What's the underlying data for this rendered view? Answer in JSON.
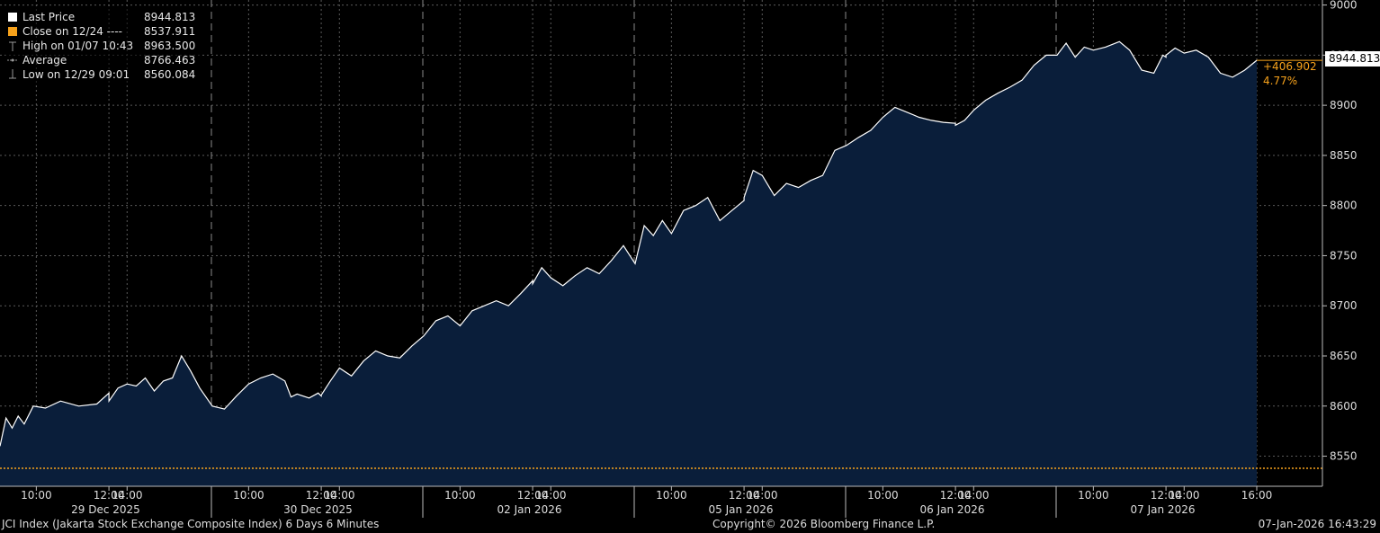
{
  "legend": {
    "items": [
      {
        "label": "Last Price",
        "value": "8944.813",
        "swatch": "#ffffff",
        "kind": "box"
      },
      {
        "label": "Close on 12/24 ----",
        "value": "8537.911",
        "swatch": "#f7a21b",
        "kind": "box"
      },
      {
        "label": "High on 01/07 10:43",
        "value": "8963.500",
        "swatch": "#888888",
        "kind": "high"
      },
      {
        "label": "Average",
        "value": "8766.463",
        "swatch": "#888888",
        "kind": "avg"
      },
      {
        "label": "Low on 12/29 09:01",
        "value": "8560.084",
        "swatch": "#888888",
        "kind": "low"
      }
    ]
  },
  "last_price_label": "8944.813",
  "change": {
    "abs": "+406.902",
    "pct": "4.77%"
  },
  "footer": {
    "left": "JCI Index (Jakarta Stock Exchange Composite Index) 6 Days 6 Minutes",
    "center": "Copyright© 2026 Bloomberg Finance L.P.",
    "right": "07-Jan-2026 16:43:29"
  },
  "colors": {
    "line": "#ffffff",
    "fill": "#0a1e3a",
    "close_line": "#f7a21b",
    "grid": "#5a5a5a",
    "axis_text": "#dddddd"
  },
  "chart_data": {
    "type": "area",
    "ylim": [
      8520,
      9005
    ],
    "yticks": [
      8550,
      8600,
      8650,
      8700,
      8750,
      8800,
      8850,
      8900,
      8950,
      9000
    ],
    "reference_close": 8537.911,
    "days": [
      {
        "label": "29 Dec 2025",
        "times": [
          "10:00",
          "12:00",
          "14:00"
        ]
      },
      {
        "label": "30 Dec 2025",
        "times": [
          "10:00",
          "12:00",
          "14:00"
        ]
      },
      {
        "label": "02 Jan 2026",
        "times": [
          "10:00",
          "12:00",
          "14:00"
        ]
      },
      {
        "label": "05 Jan 2026",
        "times": [
          "10:00",
          "12:00",
          "14:00"
        ]
      },
      {
        "label": "06 Jan 2026",
        "times": [
          "10:00",
          "12:00",
          "14:00"
        ]
      },
      {
        "label": "07 Jan 2026",
        "times": [
          "10:00",
          "12:00",
          "14:00",
          "16:00"
        ]
      }
    ],
    "series": [
      {
        "name": "Last Price",
        "points": [
          [
            "29 Dec 2025 09:00",
            8560
          ],
          [
            "29 Dec 2025 09:10",
            8588
          ],
          [
            "29 Dec 2025 09:20",
            8578
          ],
          [
            "29 Dec 2025 09:30",
            8590
          ],
          [
            "29 Dec 2025 09:40",
            8582
          ],
          [
            "29 Dec 2025 09:55",
            8600
          ],
          [
            "29 Dec 2025 10:15",
            8598
          ],
          [
            "29 Dec 2025 10:40",
            8605
          ],
          [
            "29 Dec 2025 11:10",
            8600
          ],
          [
            "29 Dec 2025 11:40",
            8602
          ],
          [
            "29 Dec 2025 12:00",
            8613
          ],
          [
            "29 Dec 2025 13:30",
            8605
          ],
          [
            "29 Dec 2025 13:45",
            8618
          ],
          [
            "29 Dec 2025 14:00",
            8622
          ],
          [
            "29 Dec 2025 14:15",
            8620
          ],
          [
            "29 Dec 2025 14:30",
            8628
          ],
          [
            "29 Dec 2025 14:45",
            8615
          ],
          [
            "29 Dec 2025 15:00",
            8625
          ],
          [
            "29 Dec 2025 15:15",
            8628
          ],
          [
            "29 Dec 2025 15:30",
            8650
          ],
          [
            "29 Dec 2025 15:45",
            8635
          ],
          [
            "29 Dec 2025 16:00",
            8618
          ],
          [
            "30 Dec 2025 09:00",
            8600
          ],
          [
            "30 Dec 2025 09:20",
            8597
          ],
          [
            "30 Dec 2025 09:40",
            8610
          ],
          [
            "30 Dec 2025 10:00",
            8622
          ],
          [
            "30 Dec 2025 10:20",
            8628
          ],
          [
            "30 Dec 2025 10:40",
            8632
          ],
          [
            "30 Dec 2025 11:00",
            8625
          ],
          [
            "30 Dec 2025 11:10",
            8609
          ],
          [
            "30 Dec 2025 11:20",
            8612
          ],
          [
            "30 Dec 2025 11:40",
            8608
          ],
          [
            "30 Dec 2025 11:55",
            8613
          ],
          [
            "30 Dec 2025 12:00",
            8610
          ],
          [
            "30 Dec 2025 13:30",
            8611
          ],
          [
            "30 Dec 2025 13:45",
            8625
          ],
          [
            "30 Dec 2025 14:00",
            8638
          ],
          [
            "30 Dec 2025 14:20",
            8630
          ],
          [
            "30 Dec 2025 14:40",
            8645
          ],
          [
            "30 Dec 2025 15:00",
            8655
          ],
          [
            "30 Dec 2025 15:20",
            8650
          ],
          [
            "30 Dec 2025 15:40",
            8648
          ],
          [
            "30 Dec 2025 16:00",
            8660
          ],
          [
            "02 Jan 2026 09:00",
            8670
          ],
          [
            "02 Jan 2026 09:20",
            8685
          ],
          [
            "02 Jan 2026 09:40",
            8690
          ],
          [
            "02 Jan 2026 10:00",
            8680
          ],
          [
            "02 Jan 2026 10:20",
            8695
          ],
          [
            "02 Jan 2026 10:40",
            8700
          ],
          [
            "02 Jan 2026 11:00",
            8705
          ],
          [
            "02 Jan 2026 11:20",
            8700
          ],
          [
            "02 Jan 2026 11:40",
            8712
          ],
          [
            "02 Jan 2026 12:00",
            8725
          ],
          [
            "02 Jan 2026 13:30",
            8722
          ],
          [
            "02 Jan 2026 13:45",
            8738
          ],
          [
            "02 Jan 2026 14:00",
            8728
          ],
          [
            "02 Jan 2026 14:20",
            8720
          ],
          [
            "02 Jan 2026 14:40",
            8730
          ],
          [
            "02 Jan 2026 15:00",
            8738
          ],
          [
            "02 Jan 2026 15:20",
            8732
          ],
          [
            "02 Jan 2026 15:40",
            8745
          ],
          [
            "02 Jan 2026 16:00",
            8760
          ],
          [
            "05 Jan 2026 09:00",
            8742
          ],
          [
            "05 Jan 2026 09:15",
            8780
          ],
          [
            "05 Jan 2026 09:30",
            8770
          ],
          [
            "05 Jan 2026 09:45",
            8785
          ],
          [
            "05 Jan 2026 10:00",
            8772
          ],
          [
            "05 Jan 2026 10:20",
            8795
          ],
          [
            "05 Jan 2026 10:40",
            8800
          ],
          [
            "05 Jan 2026 11:00",
            8808
          ],
          [
            "05 Jan 2026 11:20",
            8785
          ],
          [
            "05 Jan 2026 11:40",
            8795
          ],
          [
            "05 Jan 2026 12:00",
            8805
          ],
          [
            "05 Jan 2026 13:30",
            8808
          ],
          [
            "05 Jan 2026 13:45",
            8835
          ],
          [
            "05 Jan 2026 14:00",
            8830
          ],
          [
            "05 Jan 2026 14:20",
            8810
          ],
          [
            "05 Jan 2026 14:40",
            8822
          ],
          [
            "05 Jan 2026 15:00",
            8818
          ],
          [
            "05 Jan 2026 15:20",
            8825
          ],
          [
            "05 Jan 2026 15:40",
            8830
          ],
          [
            "05 Jan 2026 16:00",
            8855
          ],
          [
            "06 Jan 2026 09:00",
            8860
          ],
          [
            "06 Jan 2026 09:20",
            8868
          ],
          [
            "06 Jan 2026 09:40",
            8875
          ],
          [
            "06 Jan 2026 10:00",
            8888
          ],
          [
            "06 Jan 2026 10:20",
            8898
          ],
          [
            "06 Jan 2026 10:40",
            8893
          ],
          [
            "06 Jan 2026 11:00",
            8888
          ],
          [
            "06 Jan 2026 11:20",
            8885
          ],
          [
            "06 Jan 2026 11:40",
            8883
          ],
          [
            "06 Jan 2026 12:00",
            8882
          ],
          [
            "06 Jan 2026 13:30",
            8880
          ],
          [
            "06 Jan 2026 13:45",
            8885
          ],
          [
            "06 Jan 2026 14:00",
            8895
          ],
          [
            "06 Jan 2026 14:20",
            8905
          ],
          [
            "06 Jan 2026 14:40",
            8912
          ],
          [
            "06 Jan 2026 15:00",
            8918
          ],
          [
            "06 Jan 2026 15:20",
            8925
          ],
          [
            "06 Jan 2026 15:40",
            8940
          ],
          [
            "06 Jan 2026 16:00",
            8950
          ],
          [
            "07 Jan 2026 09:00",
            8950
          ],
          [
            "07 Jan 2026 09:15",
            8962
          ],
          [
            "07 Jan 2026 09:30",
            8948
          ],
          [
            "07 Jan 2026 09:45",
            8958
          ],
          [
            "07 Jan 2026 10:00",
            8955
          ],
          [
            "07 Jan 2026 10:20",
            8958
          ],
          [
            "07 Jan 2026 10:43",
            8963.5
          ],
          [
            "07 Jan 2026 11:00",
            8955
          ],
          [
            "07 Jan 2026 11:20",
            8935
          ],
          [
            "07 Jan 2026 11:40",
            8932
          ],
          [
            "07 Jan 2026 11:55",
            8950
          ],
          [
            "07 Jan 2026 12:00",
            8948
          ],
          [
            "07 Jan 2026 13:30",
            8950
          ],
          [
            "07 Jan 2026 13:45",
            8957
          ],
          [
            "07 Jan 2026 14:00",
            8952
          ],
          [
            "07 Jan 2026 14:20",
            8955
          ],
          [
            "07 Jan 2026 14:40",
            8948
          ],
          [
            "07 Jan 2026 15:00",
            8932
          ],
          [
            "07 Jan 2026 15:20",
            8928
          ],
          [
            "07 Jan 2026 15:40",
            8935
          ],
          [
            "07 Jan 2026 16:00",
            8944.813
          ]
        ]
      }
    ]
  }
}
